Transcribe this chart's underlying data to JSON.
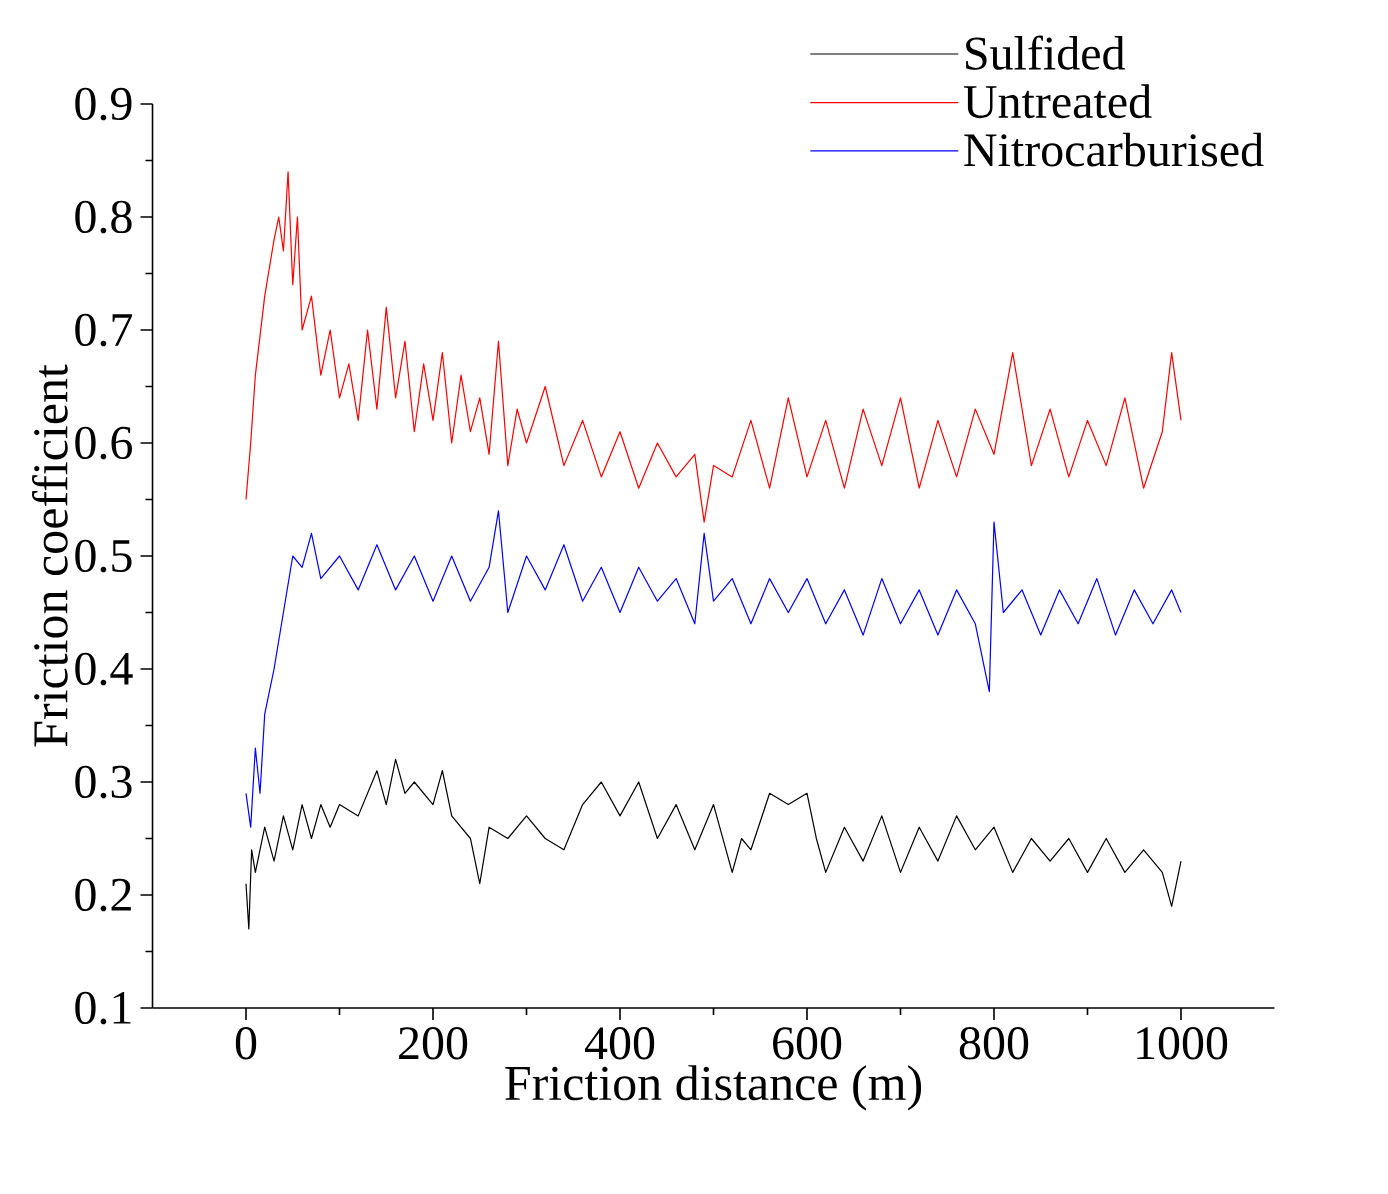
{
  "chart_data": {
    "type": "line",
    "xlabel": "Friction distance (m)",
    "ylabel": "Friction coefficient",
    "xlim": [
      -100,
      1100
    ],
    "ylim": [
      0.1,
      0.9
    ],
    "xticks": [
      0,
      200,
      400,
      600,
      800,
      1000
    ],
    "yticks": [
      0.1,
      0.2,
      0.3,
      0.4,
      0.5,
      0.6,
      0.7,
      0.8,
      0.9
    ],
    "grid": false,
    "legend": "top right",
    "series": [
      {
        "name": "Sulfided",
        "color": "#000000",
        "x": [
          0,
          3,
          6,
          10,
          20,
          30,
          40,
          50,
          60,
          70,
          80,
          90,
          100,
          120,
          140,
          150,
          160,
          170,
          180,
          200,
          210,
          220,
          240,
          250,
          260,
          280,
          300,
          320,
          340,
          360,
          380,
          400,
          420,
          440,
          460,
          480,
          500,
          520,
          530,
          540,
          560,
          580,
          600,
          610,
          620,
          640,
          660,
          680,
          700,
          720,
          740,
          760,
          780,
          800,
          820,
          840,
          860,
          880,
          900,
          920,
          940,
          960,
          980,
          990,
          1000
        ],
        "values": [
          0.21,
          0.17,
          0.24,
          0.22,
          0.26,
          0.23,
          0.27,
          0.24,
          0.28,
          0.25,
          0.28,
          0.26,
          0.28,
          0.27,
          0.31,
          0.28,
          0.32,
          0.29,
          0.3,
          0.28,
          0.31,
          0.27,
          0.25,
          0.21,
          0.26,
          0.25,
          0.27,
          0.25,
          0.24,
          0.28,
          0.3,
          0.27,
          0.3,
          0.25,
          0.28,
          0.24,
          0.28,
          0.22,
          0.25,
          0.24,
          0.29,
          0.28,
          0.29,
          0.25,
          0.22,
          0.26,
          0.23,
          0.27,
          0.22,
          0.26,
          0.23,
          0.27,
          0.24,
          0.26,
          0.22,
          0.25,
          0.23,
          0.25,
          0.22,
          0.25,
          0.22,
          0.24,
          0.22,
          0.19,
          0.23
        ]
      },
      {
        "name": "Untreated",
        "color": "#ff0000",
        "x": [
          0,
          5,
          10,
          20,
          30,
          35,
          40,
          45,
          50,
          55,
          60,
          70,
          80,
          90,
          100,
          110,
          120,
          130,
          140,
          150,
          160,
          170,
          180,
          190,
          200,
          210,
          220,
          230,
          240,
          250,
          260,
          270,
          280,
          290,
          300,
          320,
          340,
          360,
          380,
          400,
          420,
          440,
          460,
          480,
          490,
          500,
          520,
          540,
          560,
          580,
          600,
          620,
          640,
          660,
          680,
          700,
          720,
          740,
          760,
          780,
          800,
          820,
          840,
          860,
          880,
          900,
          920,
          940,
          960,
          980,
          990,
          1000
        ],
        "values": [
          0.55,
          0.6,
          0.66,
          0.73,
          0.78,
          0.8,
          0.77,
          0.84,
          0.74,
          0.8,
          0.7,
          0.73,
          0.66,
          0.7,
          0.64,
          0.67,
          0.62,
          0.7,
          0.63,
          0.72,
          0.64,
          0.69,
          0.61,
          0.67,
          0.62,
          0.68,
          0.6,
          0.66,
          0.61,
          0.64,
          0.59,
          0.69,
          0.58,
          0.63,
          0.6,
          0.65,
          0.58,
          0.62,
          0.57,
          0.61,
          0.56,
          0.6,
          0.57,
          0.59,
          0.53,
          0.58,
          0.57,
          0.62,
          0.56,
          0.64,
          0.57,
          0.62,
          0.56,
          0.63,
          0.58,
          0.64,
          0.56,
          0.62,
          0.57,
          0.63,
          0.59,
          0.68,
          0.58,
          0.63,
          0.57,
          0.62,
          0.58,
          0.64,
          0.56,
          0.61,
          0.68,
          0.62
        ]
      },
      {
        "name": "Nitrocarburised",
        "color": "#0000ff",
        "x": [
          0,
          5,
          10,
          15,
          20,
          30,
          40,
          50,
          60,
          70,
          80,
          100,
          120,
          140,
          160,
          180,
          200,
          220,
          240,
          260,
          270,
          280,
          300,
          320,
          340,
          360,
          380,
          400,
          420,
          440,
          460,
          480,
          490,
          500,
          520,
          540,
          560,
          580,
          600,
          620,
          640,
          660,
          680,
          700,
          720,
          740,
          760,
          780,
          795,
          800,
          810,
          830,
          850,
          870,
          890,
          910,
          930,
          950,
          970,
          990,
          1000
        ],
        "values": [
          0.29,
          0.26,
          0.33,
          0.29,
          0.36,
          0.4,
          0.45,
          0.5,
          0.49,
          0.52,
          0.48,
          0.5,
          0.47,
          0.51,
          0.47,
          0.5,
          0.46,
          0.5,
          0.46,
          0.49,
          0.54,
          0.45,
          0.5,
          0.47,
          0.51,
          0.46,
          0.49,
          0.45,
          0.49,
          0.46,
          0.48,
          0.44,
          0.52,
          0.46,
          0.48,
          0.44,
          0.48,
          0.45,
          0.48,
          0.44,
          0.47,
          0.43,
          0.48,
          0.44,
          0.47,
          0.43,
          0.47,
          0.44,
          0.38,
          0.53,
          0.45,
          0.47,
          0.43,
          0.47,
          0.44,
          0.48,
          0.43,
          0.47,
          0.44,
          0.47,
          0.45
        ]
      }
    ]
  }
}
